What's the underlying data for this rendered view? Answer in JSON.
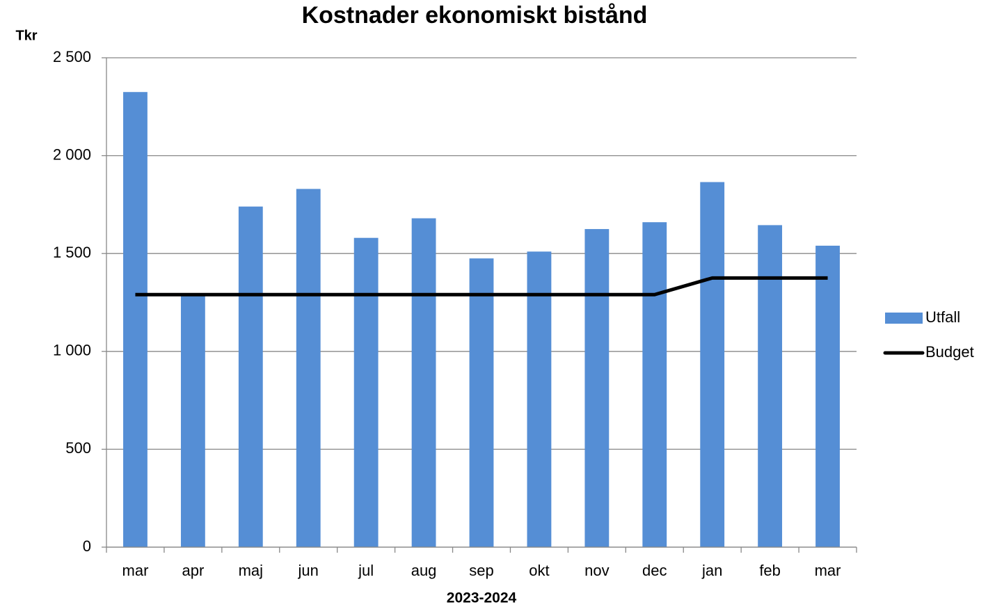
{
  "chart_data": {
    "type": "bar",
    "title": "Kostnader ekonomiskt bistånd",
    "y_label": "Tkr",
    "x_label": "2023-2024",
    "categories": [
      "mar",
      "apr",
      "maj",
      "jun",
      "jul",
      "aug",
      "sep",
      "okt",
      "nov",
      "dec",
      "jan",
      "feb",
      "mar"
    ],
    "series": [
      {
        "name": "Utfall",
        "type": "bar",
        "color": "#558ed5",
        "values": [
          2325,
          1290,
          1740,
          1830,
          1580,
          1680,
          1475,
          1510,
          1625,
          1660,
          1865,
          1645,
          1540
        ]
      },
      {
        "name": "Budget",
        "type": "line",
        "color": "#000000",
        "values": [
          1290,
          1290,
          1290,
          1290,
          1290,
          1290,
          1290,
          1290,
          1290,
          1290,
          1375,
          1375,
          1375
        ]
      }
    ],
    "ylim": [
      0,
      2500
    ],
    "yticks": [
      0,
      500,
      {
        "value": 1000,
        "label": "1 000"
      },
      {
        "value": 1500,
        "label": "1 500"
      },
      {
        "value": 2000,
        "label": "2 000"
      },
      {
        "value": 2500,
        "label": "2 500"
      }
    ],
    "grid": true,
    "legend": "right"
  }
}
